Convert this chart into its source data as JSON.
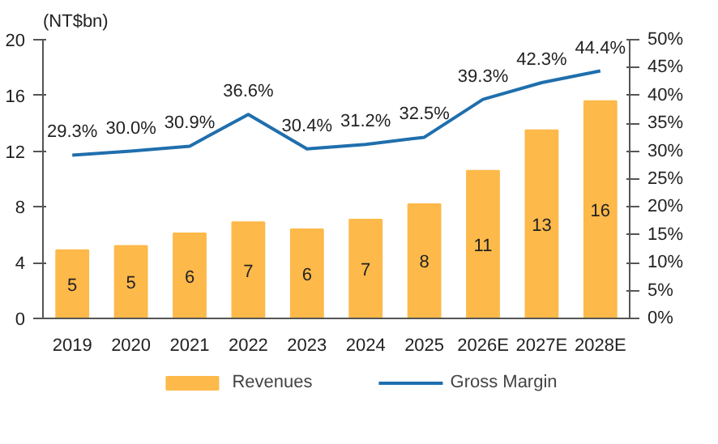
{
  "chart_data": {
    "type": "bar",
    "ylabel": "(NT$bn)",
    "categories": [
      "2019",
      "2020",
      "2021",
      "2022",
      "2023",
      "2024",
      "2025",
      "2026E",
      "2027E",
      "2028E"
    ],
    "series": [
      {
        "name": "Revenues",
        "color": "#fdb94a",
        "values": [
          4.9,
          5.2,
          6.1,
          6.9,
          6.4,
          7.1,
          8.2,
          10.6,
          13.5,
          15.6
        ],
        "value_labels": [
          "5",
          "5",
          "6",
          "7",
          "6",
          "7",
          "8",
          "11",
          "13",
          "16"
        ]
      },
      {
        "name": "Gross Margin",
        "type": "line",
        "axis": "y2",
        "color": "#1f6fad",
        "values": [
          29.3,
          30.0,
          30.9,
          36.6,
          30.4,
          31.2,
          32.5,
          39.3,
          42.3,
          44.4
        ],
        "value_labels": [
          "29.3%",
          "30.0%",
          "30.9%",
          "36.6%",
          "30.4%",
          "31.2%",
          "32.5%",
          "39.3%",
          "42.3%",
          "44.4%"
        ]
      }
    ],
    "ylim": [
      0,
      20
    ],
    "yticks": [
      0,
      4,
      8,
      12,
      16,
      20
    ],
    "y2lim": [
      0,
      50
    ],
    "y2ticks": [
      {
        "value": 0,
        "label": "0%"
      },
      {
        "value": 5,
        "label": "5%"
      },
      {
        "value": 10,
        "label": "10%"
      },
      {
        "value": 15,
        "label": "15%"
      },
      {
        "value": 20,
        "label": "20%"
      },
      {
        "value": 25,
        "label": "25%"
      },
      {
        "value": 30,
        "label": "30%"
      },
      {
        "value": 35,
        "label": "35%"
      },
      {
        "value": 40,
        "label": "40%"
      },
      {
        "value": 45,
        "label": "45%"
      },
      {
        "value": 50,
        "label": "50%"
      }
    ],
    "grid": false,
    "legend": "bottom",
    "marker": "none",
    "line_style": "solid"
  }
}
